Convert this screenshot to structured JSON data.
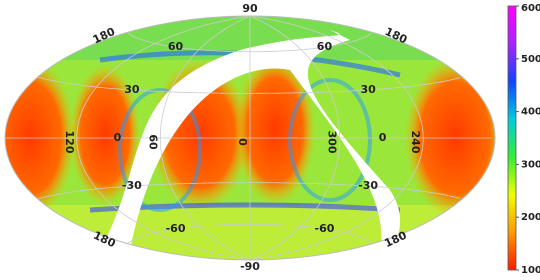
{
  "chart_data": {
    "type": "skymap",
    "projection": "hammer",
    "lat_ticks": [
      90,
      60,
      30,
      0,
      -30,
      -60,
      -90
    ],
    "lon_ticks": [
      120,
      60,
      0,
      300,
      240
    ],
    "edge_lon": 180,
    "clim": [
      100,
      600
    ],
    "cticks": [
      100,
      200,
      300,
      400,
      500,
      600
    ],
    "colormap": [
      "#ff1a00",
      "#ff9900",
      "#eeff00",
      "#33ee33",
      "#00ccdd",
      "#1144ff",
      "#aa22ff",
      "#ff00ff"
    ],
    "grid": true
  }
}
